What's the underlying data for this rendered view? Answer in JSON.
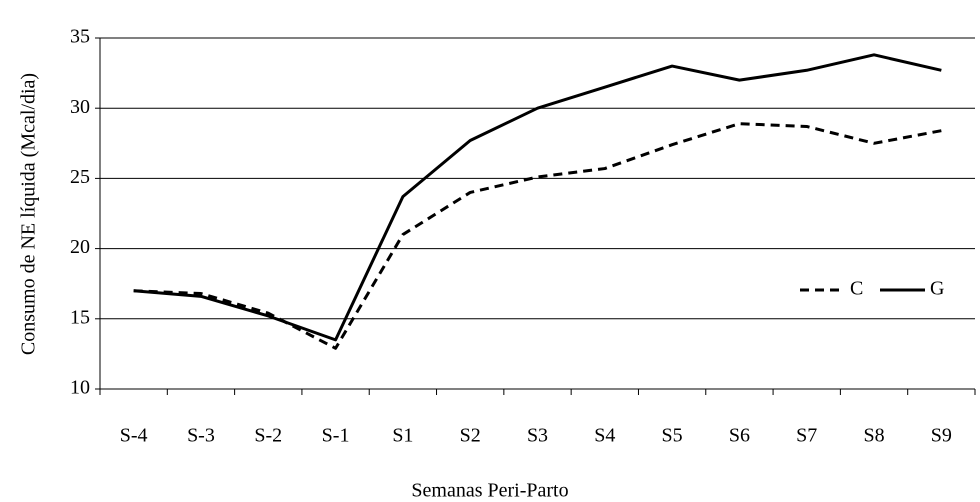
{
  "chart_data": {
    "type": "line",
    "x_label": "Semanas Peri-Parto",
    "y_label": "Consumo de NE líquida (Mcal/dia)",
    "categories": [
      "S-4",
      "S-3",
      "S-2",
      "S-1",
      "S1",
      "S2",
      "S3",
      "S4",
      "S5",
      "S6",
      "S7",
      "S8",
      "S9"
    ],
    "series": [
      {
        "name": "C",
        "color": "#000000",
        "dash": true,
        "values": [
          17.0,
          16.8,
          15.4,
          12.9,
          21.0,
          24.0,
          25.1,
          25.7,
          27.4,
          28.9,
          28.7,
          27.5,
          28.4
        ]
      },
      {
        "name": "G",
        "color": "#000000",
        "dash": false,
        "values": [
          17.0,
          16.6,
          15.2,
          13.5,
          23.7,
          27.7,
          30.0,
          31.5,
          33.0,
          32.0,
          32.7,
          33.8,
          32.7
        ]
      }
    ],
    "ylim": [
      10,
      35
    ],
    "yticks": [
      10,
      15,
      20,
      25,
      30,
      35
    ],
    "grid": true,
    "legend": "right"
  }
}
